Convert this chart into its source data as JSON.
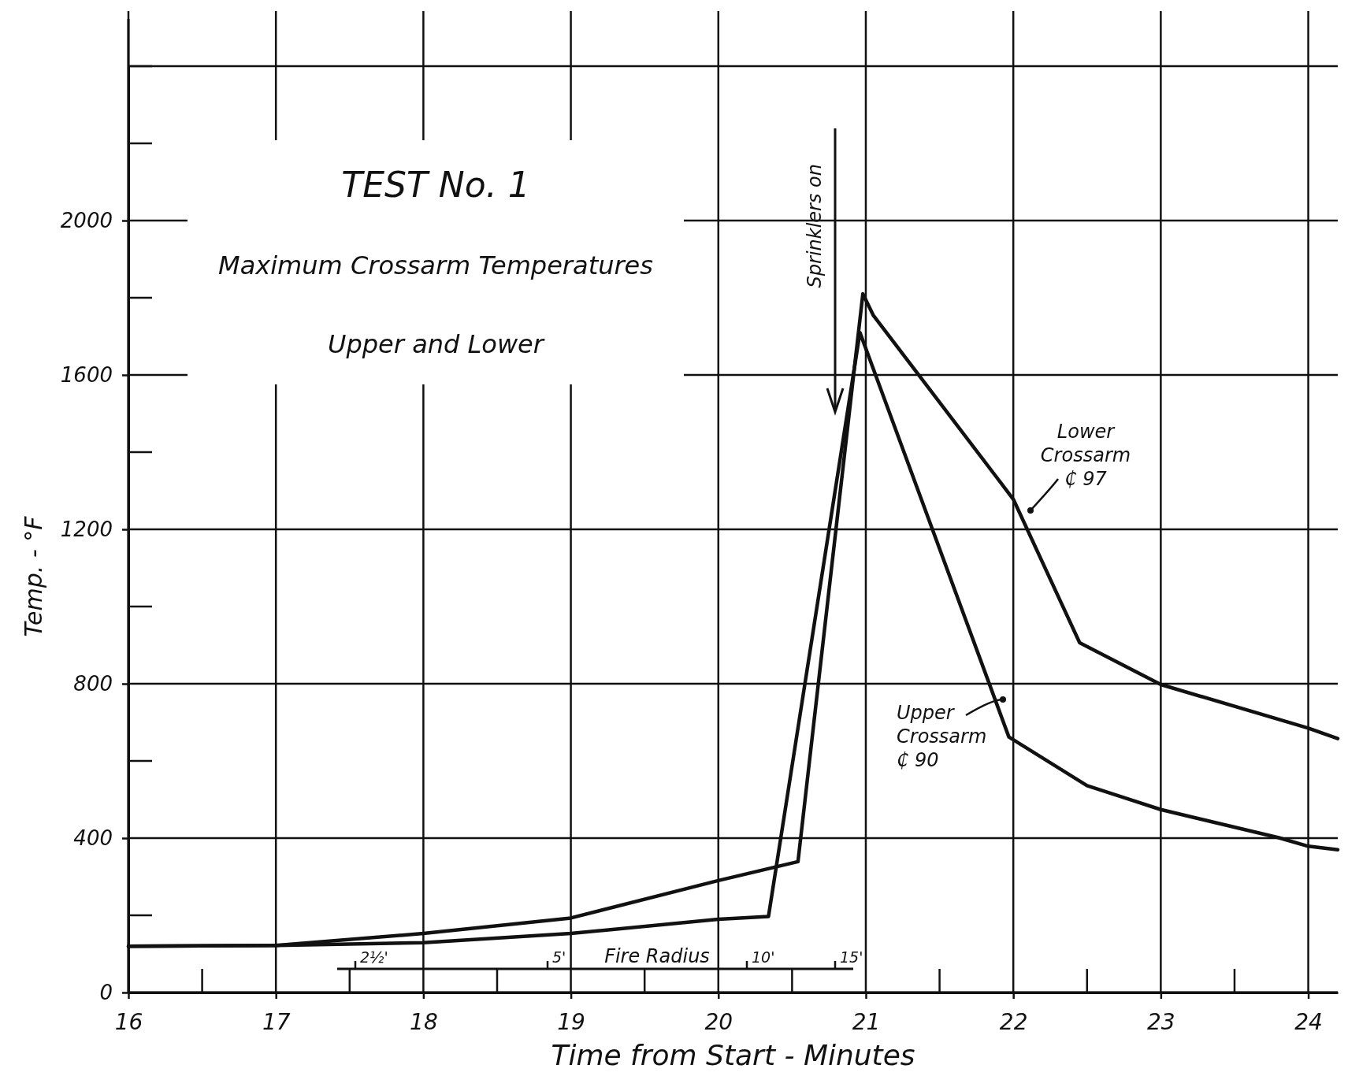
{
  "chart_data": {
    "type": "line",
    "title": "TEST No. 1",
    "subtitle": "Maximum Crossarm Temperatures",
    "xlabel": "Time from Start - Minutes",
    "ylabel": "Temp. - °F",
    "xlim": [
      16,
      24.2
    ],
    "ylim": [
      0,
      2400
    ],
    "xticks": [
      16,
      17,
      18,
      19,
      20,
      21,
      22,
      23,
      24
    ],
    "yticks": [
      0,
      400,
      800,
      1200,
      1600,
      2000
    ],
    "grid": true,
    "marker": "none",
    "line_style": "solid",
    "series": [
      {
        "name": "Lower Crossarm ₵ 97",
        "color": "#111111",
        "x": [
          16,
          17,
          18,
          19,
          20,
          20.54,
          20.98,
          21.05,
          22,
          22.45,
          23,
          24,
          24.2
        ],
        "values": [
          120,
          122,
          153,
          193,
          290,
          339,
          1810,
          1755,
          1278,
          906,
          798,
          685,
          658
        ]
      },
      {
        "name": "Upper Crossarm ₵ 90",
        "color": "#111111",
        "x": [
          16,
          17,
          18,
          19,
          20,
          20.34,
          20.96,
          21.97,
          22.5,
          23,
          23.8,
          24,
          24.2
        ],
        "values": [
          120,
          122,
          129,
          153,
          190,
          197,
          1710,
          662,
          536,
          474,
          401,
          379,
          370
        ]
      }
    ],
    "annotations": [
      "Upper and Lower",
      "Sprinklers on",
      "2½'",
      "5'",
      "Fire Radius",
      "10'",
      "15'"
    ]
  }
}
